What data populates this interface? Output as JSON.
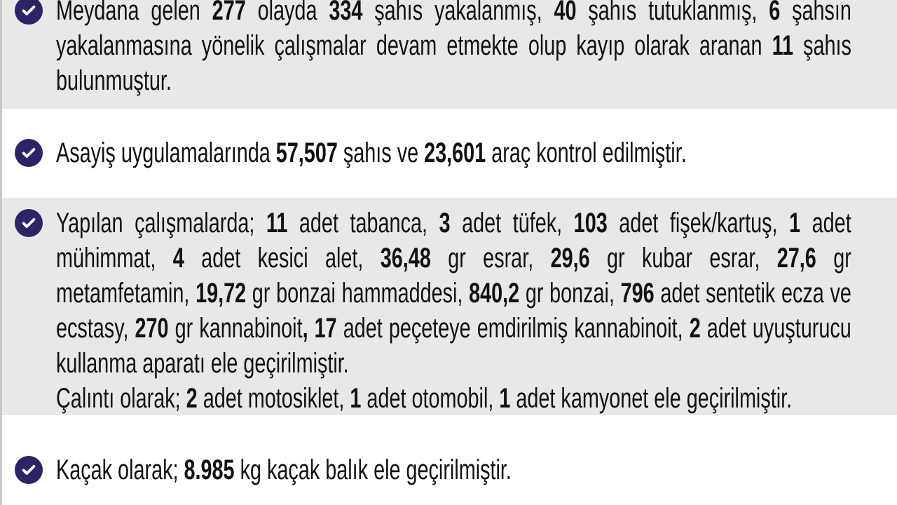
{
  "colors": {
    "band_gray": "#e8e8e8",
    "check_circle": "#2b2467"
  },
  "sections": [
    {
      "band": "gray",
      "icon": "check-circle-icon",
      "lines": [
        {
          "justify": true,
          "segs": [
            {
              "t": "Meydana gelen "
            },
            {
              "t": "277",
              "b": true
            },
            {
              "t": " olayda "
            },
            {
              "t": "334",
              "b": true
            },
            {
              "t": " şahıs yakalanmış, "
            },
            {
              "t": "40",
              "b": true
            },
            {
              "t": " şahıs tutuklanmış, "
            },
            {
              "t": "6",
              "b": true
            },
            {
              "t": " şahsın"
            }
          ]
        },
        {
          "justify": true,
          "segs": [
            {
              "t": "yakalanmasına yönelik çalışmalar devam etmekte olup kayıp olarak aranan "
            },
            {
              "t": "11",
              "b": true
            },
            {
              "t": " şahıs"
            }
          ]
        },
        {
          "justify": false,
          "segs": [
            {
              "t": "bulunmuştur."
            }
          ]
        }
      ]
    },
    {
      "band": "white",
      "icon": "check-circle-icon",
      "lines": [
        {
          "justify": false,
          "segs": [
            {
              "t": "Asayiş uygulamalarında "
            },
            {
              "t": "57,507",
              "b": true
            },
            {
              "t": " şahıs ve "
            },
            {
              "t": "23,601",
              "b": true
            },
            {
              "t": " araç kontrol edilmiştir."
            }
          ]
        }
      ]
    },
    {
      "band": "gray",
      "icon": "check-circle-icon",
      "lines": [
        {
          "justify": true,
          "segs": [
            {
              "t": "Yapılan çalışmalarda; "
            },
            {
              "t": "11",
              "b": true
            },
            {
              "t": " adet tabanca, "
            },
            {
              "t": "3",
              "b": true
            },
            {
              "t": " adet tüfek, "
            },
            {
              "t": "103",
              "b": true
            },
            {
              "t": " adet fişek/kartuş, "
            },
            {
              "t": "1",
              "b": true
            },
            {
              "t": " adet"
            }
          ]
        },
        {
          "justify": true,
          "segs": [
            {
              "t": "mühimmat, "
            },
            {
              "t": "4",
              "b": true
            },
            {
              "t": " adet kesici alet, "
            },
            {
              "t": "36,48",
              "b": true
            },
            {
              "t": " gr esrar, "
            },
            {
              "t": "29,6",
              "b": true
            },
            {
              "t": " gr kubar esrar, "
            },
            {
              "t": "27,6",
              "b": true
            },
            {
              "t": " gr"
            }
          ]
        },
        {
          "justify": true,
          "segs": [
            {
              "t": "metamfetamin, "
            },
            {
              "t": "19,72",
              "b": true
            },
            {
              "t": " gr bonzai hammaddesi, "
            },
            {
              "t": "840,2",
              "b": true
            },
            {
              "t": " gr bonzai, "
            },
            {
              "t": "796",
              "b": true
            },
            {
              "t": " adet sentetik ecza ve"
            }
          ]
        },
        {
          "justify": true,
          "segs": [
            {
              "t": "ecstasy, "
            },
            {
              "t": "270",
              "b": true
            },
            {
              "t": " gr kannabinoit"
            },
            {
              "t": ", 17",
              "b": true
            },
            {
              "t": " adet peçeteye emdirilmiş kannabinoit, "
            },
            {
              "t": "2",
              "b": true
            },
            {
              "t": " adet uyuşturucu"
            }
          ]
        },
        {
          "justify": false,
          "segs": [
            {
              "t": "kullanma aparatı ele geçirilmiştir."
            }
          ]
        },
        {
          "justify": false,
          "segs": [
            {
              "t": "Çalıntı olarak; "
            },
            {
              "t": "2",
              "b": true
            },
            {
              "t": " adet motosiklet, "
            },
            {
              "t": "1",
              "b": true
            },
            {
              "t": " adet otomobil, "
            },
            {
              "t": "1",
              "b": true
            },
            {
              "t": " adet kamyonet ele geçirilmiştir."
            }
          ]
        }
      ]
    },
    {
      "band": "white",
      "icon": "check-circle-icon",
      "lines": [
        {
          "justify": false,
          "segs": [
            {
              "t": "Kaçak olarak; "
            },
            {
              "t": "8.985",
              "b": true
            },
            {
              "t": " kg kaçak balık ele geçirilmiştir."
            }
          ]
        }
      ]
    }
  ]
}
